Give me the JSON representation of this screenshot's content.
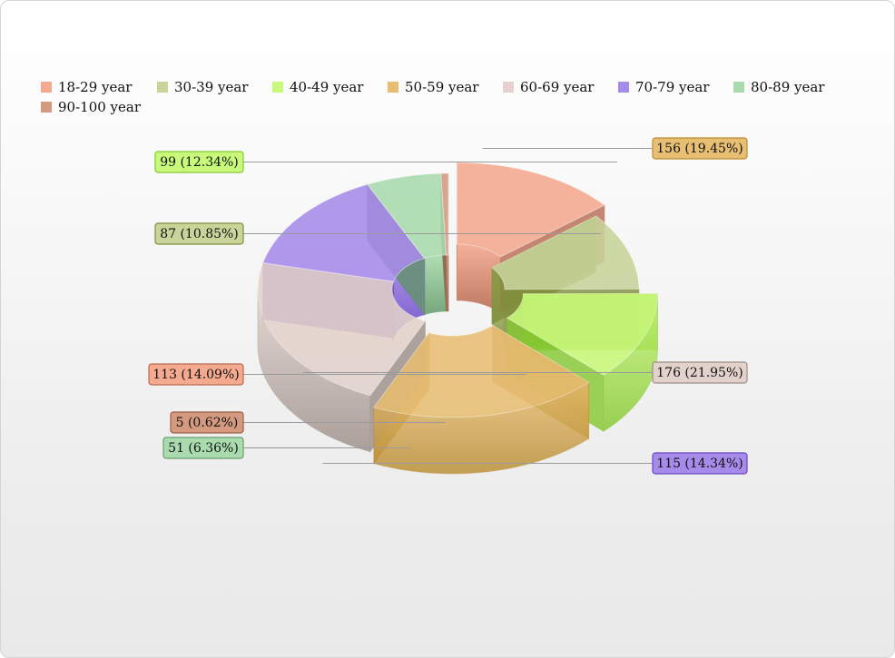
{
  "chart_data": {
    "type": "pie",
    "variant": "3d-donut",
    "legend_position": "top-left",
    "slices": [
      {
        "label": "18-29 year",
        "value": 113,
        "percent": "14.09%",
        "color": "#f5a98f",
        "dark": "#b86b52",
        "exploded": true
      },
      {
        "label": "30-39 year",
        "value": 87,
        "percent": "10.85%",
        "color": "#c8d49a",
        "dark": "#7f8f3a"
      },
      {
        "label": "40-49 year",
        "value": 99,
        "percent": "12.34%",
        "color": "#c9f97a",
        "dark": "#85c830",
        "exploded": true
      },
      {
        "label": "50-59 year",
        "value": 156,
        "percent": "19.45%",
        "color": "#e8be73",
        "dark": "#b98c30",
        "exploded": true
      },
      {
        "label": "60-69 year",
        "value": 176,
        "percent": "21.95%",
        "color": "#e2d2cb",
        "dark": "#9c8e88"
      },
      {
        "label": "70-79 year",
        "value": 115,
        "percent": "14.34%",
        "color": "#a78bea",
        "dark": "#6a48c4"
      },
      {
        "label": "80-89 year",
        "value": 51,
        "percent": "6.36%",
        "color": "#a9dbae",
        "dark": "#6a9e6f"
      },
      {
        "label": "90-100 year",
        "value": 5,
        "percent": "0.62%",
        "color": "#d49a80",
        "dark": "#9a5e45"
      }
    ]
  },
  "callouts": [
    {
      "text": "113 (14.09%)"
    },
    {
      "text": "87 (10.85%)"
    },
    {
      "text": "99 (12.34%)"
    },
    {
      "text": "156 (19.45%)"
    },
    {
      "text": "176 (21.95%)"
    },
    {
      "text": "115 (14.34%)"
    },
    {
      "text": "51 (6.36%)"
    },
    {
      "text": "5 (0.62%)"
    }
  ]
}
